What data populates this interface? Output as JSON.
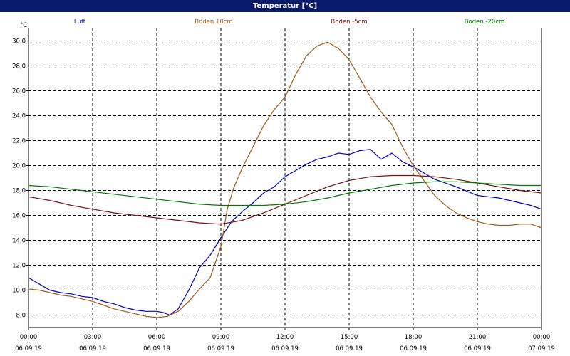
{
  "window": {
    "title": "Temperatur [°C]"
  },
  "chart_data": {
    "type": "line",
    "title": "Temperatur [°C]",
    "ylabel": "°C",
    "ylim": [
      7,
      31
    ],
    "yticks": [
      8,
      10,
      12,
      14,
      16,
      18,
      20,
      22,
      24,
      26,
      28,
      30
    ],
    "ytick_labels": [
      "8,0",
      "10,0",
      "12,0",
      "14,0",
      "16,0",
      "18,0",
      "20,0",
      "22,0",
      "24,0",
      "26,0",
      "28,0",
      "30,0"
    ],
    "xlim": [
      0,
      24
    ],
    "xticks": [
      0,
      3,
      6,
      9,
      12,
      15,
      18,
      21,
      24
    ],
    "xtick_labels": [
      "00:00",
      "03:00",
      "06:00",
      "09:00",
      "12:00",
      "15:00",
      "18:00",
      "21:00",
      "00:00"
    ],
    "xtick_dates": [
      "06.09.19",
      "06.09.19",
      "06.09.19",
      "06.09.19",
      "06.09.19",
      "06.09.19",
      "06.09.19",
      "06.09.19",
      "07.09.19"
    ],
    "grid": true,
    "legend_position": "top",
    "series": [
      {
        "name": "Luft",
        "color": "#0000cc",
        "x": [
          0,
          0.5,
          1,
          1.5,
          2,
          2.5,
          3,
          3.5,
          4,
          4.5,
          5,
          5.5,
          6,
          6.3,
          6.6,
          7,
          7.5,
          8,
          8.5,
          9,
          9.5,
          10,
          10.5,
          11,
          11.5,
          12,
          12.5,
          13,
          13.5,
          14,
          14.5,
          15,
          15.5,
          16,
          16.5,
          17,
          17.5,
          18,
          18.5,
          19,
          20,
          21,
          21.5,
          22,
          22.5,
          23,
          23.5,
          24
        ],
        "y": [
          11.0,
          10.5,
          10.0,
          9.8,
          9.7,
          9.5,
          9.4,
          9.1,
          8.9,
          8.6,
          8.4,
          8.3,
          8.3,
          8.2,
          8.0,
          8.5,
          10.0,
          11.8,
          12.8,
          14.2,
          15.5,
          16.3,
          17.0,
          17.8,
          18.3,
          19.1,
          19.6,
          20.1,
          20.5,
          20.7,
          21.0,
          20.9,
          21.2,
          21.3,
          20.5,
          21.0,
          20.3,
          19.9,
          19.4,
          18.9,
          18.3,
          17.6,
          17.5,
          17.4,
          17.2,
          17.0,
          16.8,
          16.5
        ]
      },
      {
        "name": "Boden 10cm",
        "color": "#a05a1e",
        "x": [
          0,
          0.5,
          1,
          1.5,
          2,
          2.5,
          3,
          3.5,
          4,
          4.5,
          5,
          5.5,
          6,
          6.5,
          7,
          7.5,
          8,
          8.5,
          9,
          9.3,
          9.6,
          10,
          10.5,
          11,
          11.5,
          12,
          12.5,
          13,
          13.5,
          14,
          14.5,
          15,
          15.5,
          16,
          16.5,
          17,
          17.5,
          18,
          18.5,
          19,
          19.5,
          20,
          20.5,
          21,
          21.5,
          22,
          22.5,
          23,
          23.5,
          24
        ],
        "y": [
          10.1,
          10.0,
          9.8,
          9.6,
          9.5,
          9.3,
          9.1,
          8.8,
          8.5,
          8.3,
          8.1,
          7.9,
          7.8,
          7.9,
          8.3,
          9.1,
          10.1,
          11.0,
          13.5,
          16.5,
          18.2,
          19.8,
          21.5,
          23.2,
          24.5,
          25.5,
          27.3,
          28.8,
          29.6,
          29.9,
          29.4,
          28.5,
          27.0,
          25.5,
          24.3,
          23.3,
          21.5,
          20.0,
          18.8,
          17.6,
          16.8,
          16.2,
          15.8,
          15.5,
          15.3,
          15.2,
          15.2,
          15.3,
          15.3,
          15.0
        ]
      },
      {
        "name": "Boden -5cm",
        "color": "#7a1010",
        "x": [
          0,
          1,
          2,
          3,
          4,
          5,
          6,
          7,
          8,
          9,
          10,
          11,
          12,
          13,
          14,
          15,
          16,
          17,
          18,
          19,
          20,
          21,
          22,
          23,
          24
        ],
        "y": [
          17.5,
          17.2,
          16.8,
          16.5,
          16.2,
          16.0,
          15.8,
          15.6,
          15.4,
          15.3,
          15.6,
          16.2,
          16.9,
          17.6,
          18.3,
          18.8,
          19.1,
          19.2,
          19.2,
          19.1,
          18.9,
          18.6,
          18.3,
          18.0,
          17.8
        ]
      },
      {
        "name": "Boden -20cm",
        "color": "#007a00",
        "x": [
          0,
          1,
          2,
          3,
          4,
          5,
          6,
          7,
          8,
          9,
          10,
          11,
          12,
          13,
          14,
          15,
          16,
          17,
          18,
          19,
          20,
          21,
          22,
          23,
          24
        ],
        "y": [
          18.4,
          18.3,
          18.1,
          17.9,
          17.7,
          17.5,
          17.3,
          17.1,
          16.9,
          16.8,
          16.8,
          16.8,
          16.9,
          17.1,
          17.4,
          17.8,
          18.1,
          18.4,
          18.6,
          18.7,
          18.7,
          18.6,
          18.5,
          18.4,
          18.4
        ]
      }
    ]
  }
}
